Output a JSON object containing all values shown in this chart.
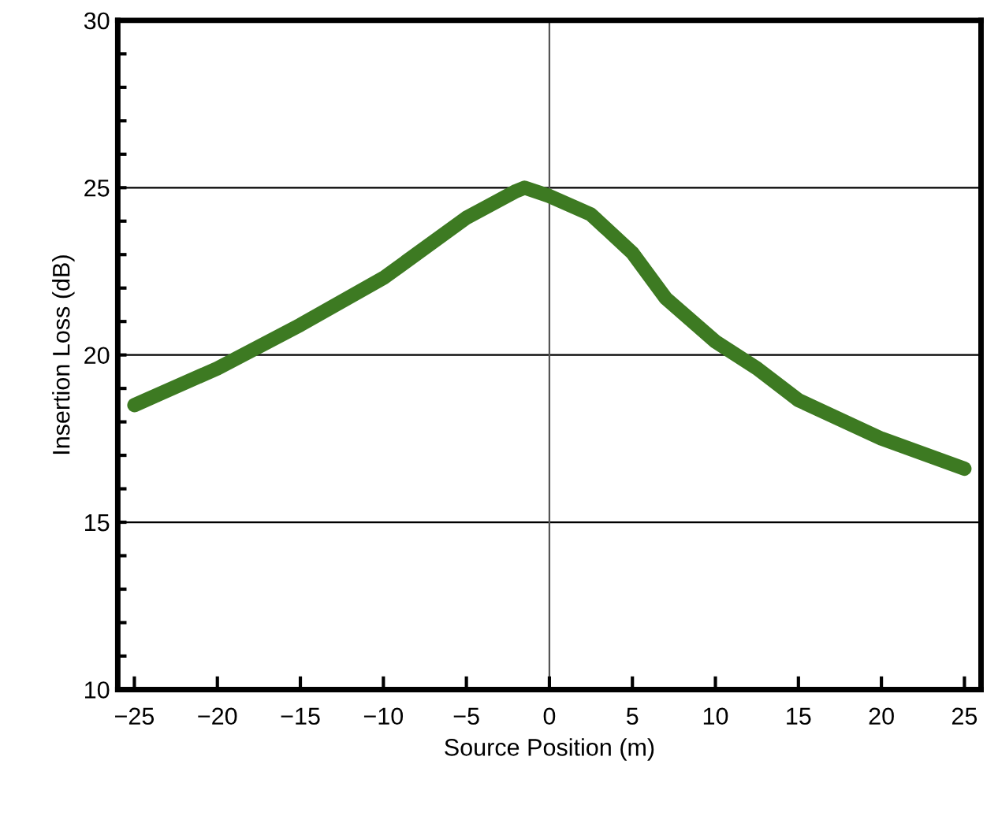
{
  "chart_data": {
    "type": "line",
    "xlabel": "Source Position (m)",
    "ylabel": "Insertion Loss (dB)",
    "x": [
      -25,
      -20,
      -15,
      -10,
      -5,
      -2,
      -1.5,
      0,
      2.5,
      5,
      7,
      10,
      12.5,
      15,
      20,
      25
    ],
    "series": [
      {
        "color": "#3d7a22",
        "values": [
          18.5,
          19.6,
          20.9,
          22.3,
          24.1,
          24.9,
          25.0,
          24.75,
          24.2,
          23.05,
          21.7,
          20.4,
          19.6,
          18.65,
          17.5,
          16.6
        ]
      }
    ],
    "xlim": [
      -26,
      26
    ],
    "xticks": [
      {
        "value": -25,
        "label": "−25"
      },
      {
        "value": -20,
        "label": "−20"
      },
      {
        "value": -15,
        "label": "−15"
      },
      {
        "value": -10,
        "label": "−10"
      },
      {
        "value": -5,
        "label": "−5"
      },
      0,
      5,
      10,
      15,
      20,
      25
    ],
    "ylim": [
      10,
      30
    ],
    "yticks": [
      10,
      {
        "value": 11,
        "label": null
      },
      {
        "value": 12,
        "label": null
      },
      {
        "value": 13,
        "label": null
      },
      {
        "value": 14,
        "label": null
      },
      15,
      {
        "value": 16,
        "label": null
      },
      {
        "value": 17,
        "label": null
      },
      {
        "value": 18,
        "label": null
      },
      {
        "value": 19,
        "label": null
      },
      20,
      {
        "value": 21,
        "label": null
      },
      {
        "value": 22,
        "label": null
      },
      {
        "value": 23,
        "label": null
      },
      {
        "value": 24,
        "label": null
      },
      25,
      {
        "value": 26,
        "label": null
      },
      {
        "value": 27,
        "label": null
      },
      {
        "value": 28,
        "label": null
      },
      {
        "value": 29,
        "label": null
      },
      30
    ],
    "grid": "y",
    "ref_lines": [
      {
        "axis": "x",
        "value": 0
      }
    ],
    "marker": "none",
    "line_style": "solid",
    "legend": false
  }
}
